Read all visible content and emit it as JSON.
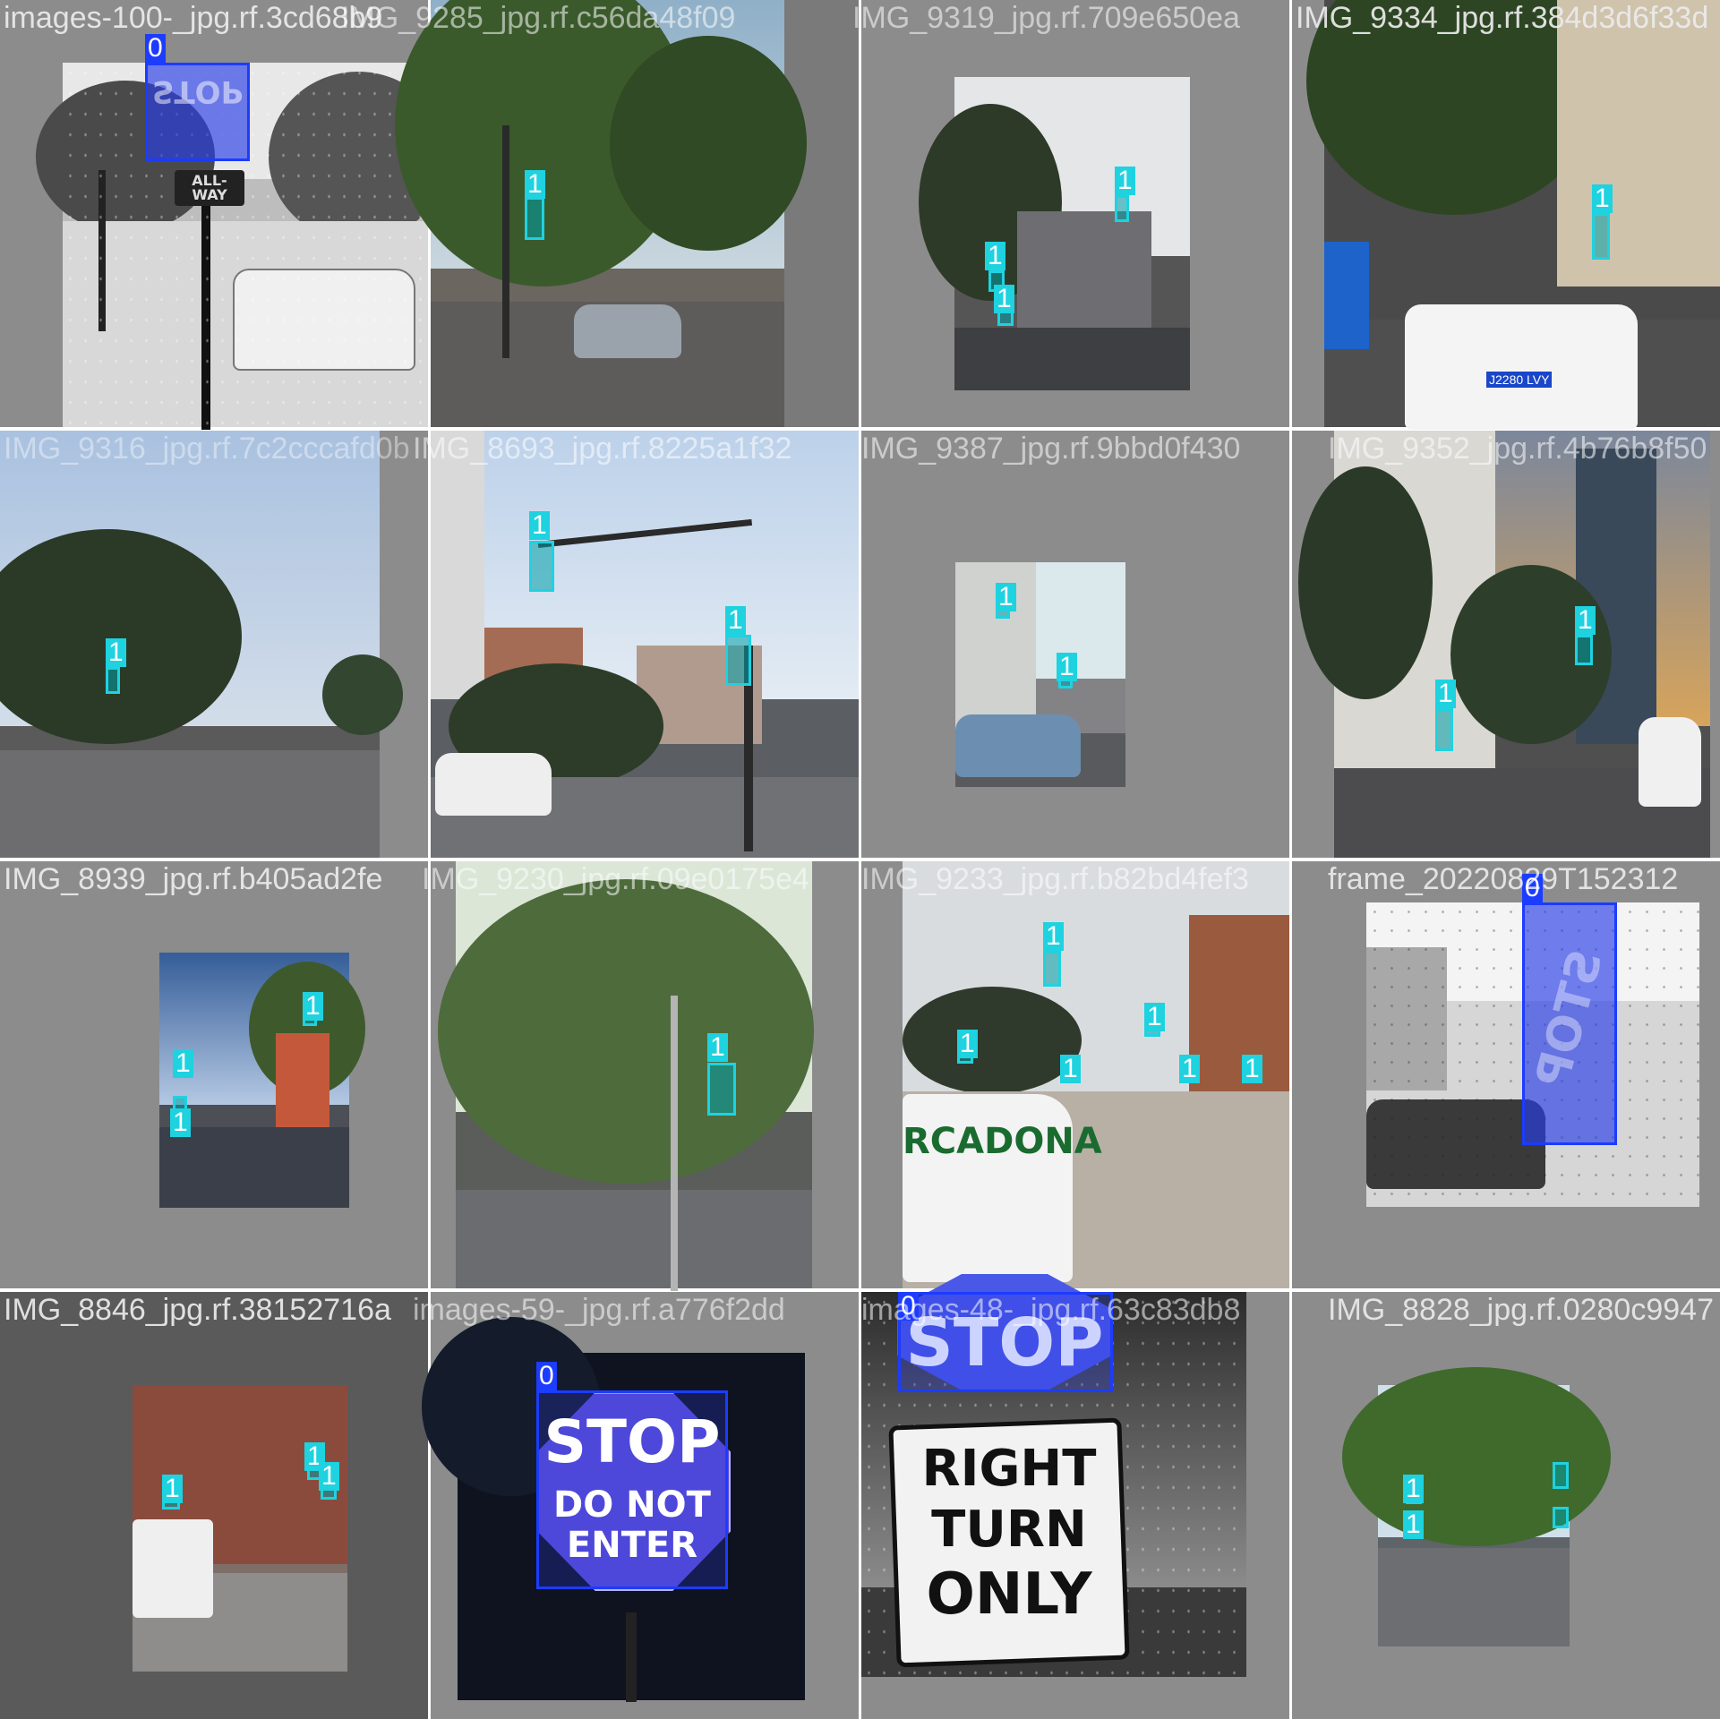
{
  "tiles": [
    {
      "caption": "images-100-_jpg.rf.3cd68b9",
      "labels": [
        "0"
      ],
      "sign_text": "STOP",
      "sub_sign": "ALL-WAY"
    },
    {
      "caption": "IMG_9285_jpg.rf.c56da48f09",
      "labels": [
        "1"
      ]
    },
    {
      "caption": "IMG_9319_jpg.rf.709e650ea",
      "labels": [
        "1",
        "1",
        "1"
      ]
    },
    {
      "caption": "IMG_9334_jpg.rf.384d3d6f33d",
      "labels": [
        "1"
      ],
      "plate": "J2280 LVY"
    },
    {
      "caption": "IMG_9316_jpg.rf.7c2cccafd0b",
      "labels": [
        "1"
      ]
    },
    {
      "caption": "IMG_8693_jpg.rf.8225a1f32",
      "labels": [
        "1",
        "1"
      ]
    },
    {
      "caption": "IMG_9387_jpg.rf.9bbd0f430",
      "labels": [
        "1",
        "1"
      ]
    },
    {
      "caption": "IMG_9352_jpg.rf.4b76b8f50",
      "labels": [
        "1",
        "1"
      ]
    },
    {
      "caption": "IMG_8939_jpg.rf.b405ad2fe",
      "labels": [
        "1",
        "1",
        "1"
      ]
    },
    {
      "caption": "IMG_9230_jpg.rf.09e0175e4",
      "labels": [
        "1"
      ]
    },
    {
      "caption": "IMG_9233_jpg.rf.b82bd4fef3",
      "labels": [
        "1",
        "1",
        "1",
        "1",
        "1",
        "1"
      ],
      "van_text": "RCADONA"
    },
    {
      "caption": "frame_20220829T152312",
      "labels": [
        "0"
      ],
      "sign_text": "STOP"
    },
    {
      "caption": "IMG_8846_jpg.rf.38152716a",
      "labels": [
        "1",
        "1",
        "1"
      ]
    },
    {
      "caption": "images-59-_jpg.rf.a776f2dd",
      "labels": [
        "0"
      ],
      "stop_line1": "STOP",
      "stop_line2": "DO NOT",
      "stop_line3": "ENTER"
    },
    {
      "caption": "images-48-_jpg.rf.63c83db8",
      "labels": [
        "0"
      ],
      "stop_text": "STOP",
      "rto1": "RIGHT",
      "rto2": "TURN",
      "rto3": "ONLY"
    },
    {
      "caption": "IMG_8828_jpg.rf.0280c9947",
      "labels": [
        "1",
        "1"
      ]
    }
  ],
  "overlay_captions": {
    "t1": "IMG_9285_jpg.rf.c56da48f09",
    "t2": "IMG_9319_jpg.rf.709e650ea",
    "t5": "IMG_8693_jpg.rf.8225a1f32",
    "t6": "IMG_9387_jpg.rf.9bbd0f430",
    "t9": "IMG_9230_jpg.rf.09e0175e4",
    "t10": "IMG_9233_jpg.rf.b82bd4fef3",
    "t13": "images-59-_jpg.rf.a776f2dd",
    "t14": "images-48-_jpg.rf.63c83db8"
  },
  "colors": {
    "class0": "#1c3cff",
    "class1": "#1ed2e0"
  }
}
